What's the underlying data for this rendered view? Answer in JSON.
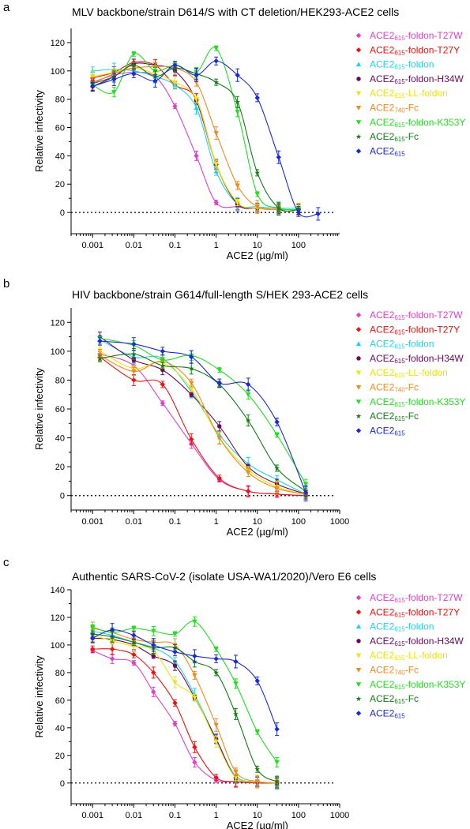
{
  "chart_data": [
    {
      "panel_label": "a",
      "type": "scatter",
      "title": "MLV backbone/strain D614/S with CT deletion/HEK293-ACE2 cells",
      "xlabel": "ACE2 (µg/ml)",
      "ylabel": "Relative infectivity",
      "x_scale": "log",
      "xlim": [
        0.0003,
        1000
      ],
      "ylim": [
        -15,
        130
      ],
      "x_ticks": [
        "0.001",
        "0.01",
        "0.1",
        "1",
        "10",
        "100"
      ],
      "y_ticks": [
        "0",
        "20",
        "40",
        "60",
        "80",
        "100",
        "120"
      ],
      "legend_position": "right",
      "x": [
        0.001,
        0.0033,
        0.01,
        0.033,
        0.1,
        0.33,
        1,
        3.3,
        10,
        33,
        100
      ],
      "series": [
        {
          "name": "ACE2615-foldon-T27W",
          "values": [
            92,
            97,
            99,
            96,
            75,
            40,
            7,
            4,
            3,
            2,
            2
          ]
        },
        {
          "name": "ACE2615-foldon-T27Y",
          "values": [
            95,
            99,
            106,
            104,
            90,
            80,
            34,
            6,
            3,
            2,
            2
          ]
        },
        {
          "name": "ACE2615-foldon",
          "values": [
            100,
            101,
            100,
            96,
            90,
            74,
            29,
            6,
            4,
            3,
            3
          ]
        },
        {
          "name": "ACE2615-foldon-H34W",
          "values": [
            89,
            96,
            105,
            104,
            100,
            79,
            34,
            6,
            3,
            2,
            2
          ]
        },
        {
          "name": "ACE2615-LL-foldon",
          "values": [
            96,
            99,
            102,
            98,
            92,
            80,
            34,
            7,
            3,
            2,
            2
          ]
        },
        {
          "name": "ACE2740-Fc",
          "values": [
            91,
            98,
            102,
            103,
            102,
            92,
            56,
            19,
            4,
            2,
            2
          ]
        },
        {
          "name": "ACE2615-foldon-K353Y",
          "values": [
            90,
            85,
            112,
            100,
            104,
            99,
            116,
            71,
            13,
            3,
            2
          ]
        },
        {
          "name": "ACE2615-Fc",
          "values": [
            91,
            96,
            104,
            96,
            102,
            98,
            92,
            78,
            28,
            3,
            2
          ]
        },
        {
          "name": "ACE2615",
          "values": [
            89,
            94,
            98,
            93,
            104,
            97,
            107,
            97,
            81,
            39,
            0
          ]
        }
      ],
      "extra_points": [
        {
          "series": "ACE2615",
          "x": 300,
          "y": -1
        }
      ]
    },
    {
      "panel_label": "b",
      "type": "scatter",
      "title": "HIV backbone/strain G614/full-length S/HEK 293-ACE2 cells",
      "xlabel": "ACE2 (µg/ml)",
      "ylabel": "Relative infectivity",
      "x_scale": "log",
      "xlim": [
        0.0003,
        1000
      ],
      "ylim": [
        -10,
        130
      ],
      "x_ticks": [
        "0.001",
        "0.01",
        "0.1",
        "1",
        "10",
        "100",
        "1000"
      ],
      "y_ticks": [
        "0",
        "20",
        "40",
        "60",
        "80",
        "100",
        "120"
      ],
      "legend_position": "right",
      "x": [
        0.0015,
        0.01,
        0.05,
        0.25,
        1.2,
        6,
        30,
        150
      ],
      "series": [
        {
          "name": "ACE2615-foldon-T27W",
          "values": [
            98,
            90,
            64,
            36,
            11,
            3,
            1,
            0
          ]
        },
        {
          "name": "ACE2615-foldon-T27Y",
          "values": [
            96,
            80,
            77,
            39,
            12,
            3,
            1,
            0
          ]
        },
        {
          "name": "ACE2615-foldon",
          "values": [
            108,
            96,
            95,
            72,
            42,
            22,
            11,
            1
          ]
        },
        {
          "name": "ACE2615-foldon-H34W",
          "values": [
            110,
            94,
            87,
            70,
            48,
            20,
            8,
            1
          ]
        },
        {
          "name": "ACE2615-LL-foldon",
          "values": [
            100,
            88,
            92,
            74,
            40,
            18,
            6,
            1
          ]
        },
        {
          "name": "ACE2740-Fc",
          "values": [
            97,
            86,
            93,
            78,
            40,
            16,
            5,
            1
          ]
        },
        {
          "name": "ACE2615-foldon-K353Y",
          "values": [
            109,
            104,
            94,
            97,
            87,
            70,
            42,
            8
          ]
        },
        {
          "name": "ACE2615-Fc",
          "values": [
            95,
            98,
            90,
            88,
            77,
            52,
            19,
            3
          ]
        },
        {
          "name": "ACE2615",
          "values": [
            107,
            105,
            100,
            96,
            78,
            77,
            51,
            2
          ]
        }
      ],
      "extra_points": []
    },
    {
      "panel_label": "c",
      "type": "scatter",
      "title": "Authentic SARS-CoV-2 (isolate USA-WA1/2020)/Vero E6 cells",
      "xlabel": "ACE2 (µg/ml)",
      "ylabel": "Relative infectivity",
      "x_scale": "log",
      "xlim": [
        0.0003,
        1000
      ],
      "ylim": [
        -15,
        140
      ],
      "x_ticks": [
        "0.001",
        "0.01",
        "0.1",
        "1",
        "10",
        "100",
        "1000"
      ],
      "y_ticks": [
        "0",
        "20",
        "40",
        "60",
        "80",
        "100",
        "120",
        "140"
      ],
      "legend_position": "right",
      "x": [
        0.001,
        0.003,
        0.01,
        0.03,
        0.1,
        0.3,
        1,
        3,
        10,
        30
      ],
      "series": [
        {
          "name": "ACE2615-foldon-T27W",
          "values": [
            96,
            90,
            87,
            66,
            43,
            15,
            2,
            1,
            0,
            0
          ]
        },
        {
          "name": "ACE2615-foldon-T27Y",
          "values": [
            97,
            97,
            93,
            80,
            58,
            26,
            4,
            1,
            0,
            0
          ]
        },
        {
          "name": "ACE2615-foldon",
          "values": [
            110,
            107,
            102,
            98,
            88,
            64,
            32,
            5,
            1,
            0
          ]
        },
        {
          "name": "ACE2615-foldon-H34W",
          "values": [
            105,
            104,
            100,
            92,
            85,
            62,
            32,
            4,
            1,
            0
          ]
        },
        {
          "name": "ACE2615-LL-foldon",
          "values": [
            107,
            103,
            99,
            96,
            73,
            62,
            30,
            4,
            1,
            0
          ]
        },
        {
          "name": "ACE2740-Fc",
          "values": [
            112,
            109,
            104,
            102,
            100,
            78,
            42,
            8,
            1,
            0
          ]
        },
        {
          "name": "ACE2615-foldon-K353Y",
          "values": [
            113,
            109,
            112,
            110,
            108,
            117,
            97,
            72,
            37,
            15
          ]
        },
        {
          "name": "ACE2615-Fc",
          "values": [
            108,
            106,
            102,
            98,
            98,
            88,
            80,
            50,
            10,
            1
          ]
        },
        {
          "name": "ACE2615",
          "values": [
            105,
            111,
            107,
            100,
            95,
            92,
            90,
            88,
            74,
            39
          ]
        }
      ],
      "extra_points": []
    }
  ],
  "legend": [
    {
      "base": "ACE2",
      "sub": "615",
      "rest": "-foldon-T27W",
      "color": "#e040c8",
      "marker": "diamond"
    },
    {
      "base": "ACE2",
      "sub": "615",
      "rest": "-foldon-T27Y",
      "color": "#ee1111",
      "marker": "diamond"
    },
    {
      "base": "ACE2",
      "sub": "615",
      "rest": "-foldon",
      "color": "#22d2e6",
      "marker": "triangle-up"
    },
    {
      "base": "ACE2",
      "sub": "615",
      "rest": "-foldon-H34W",
      "color": "#6a0a5e",
      "marker": "circle"
    },
    {
      "base": "ACE2",
      "sub": "615",
      "rest": "-LL-foldon",
      "color": "#e8e800",
      "marker": "triangle-down"
    },
    {
      "base": "ACE2",
      "sub": "740",
      "rest": "-Fc",
      "color": "#f08a20",
      "marker": "triangle-down"
    },
    {
      "base": "ACE2",
      "sub": "615",
      "rest": "-foldon-K353Y",
      "color": "#22dd22",
      "marker": "triangle-down"
    },
    {
      "base": "ACE2",
      "sub": "615",
      "rest": "-Fc",
      "color": "#177a1b",
      "marker": "star"
    },
    {
      "base": "ACE2",
      "sub": "615",
      "rest": "",
      "color": "#1a2ad8",
      "marker": "diamond"
    }
  ]
}
